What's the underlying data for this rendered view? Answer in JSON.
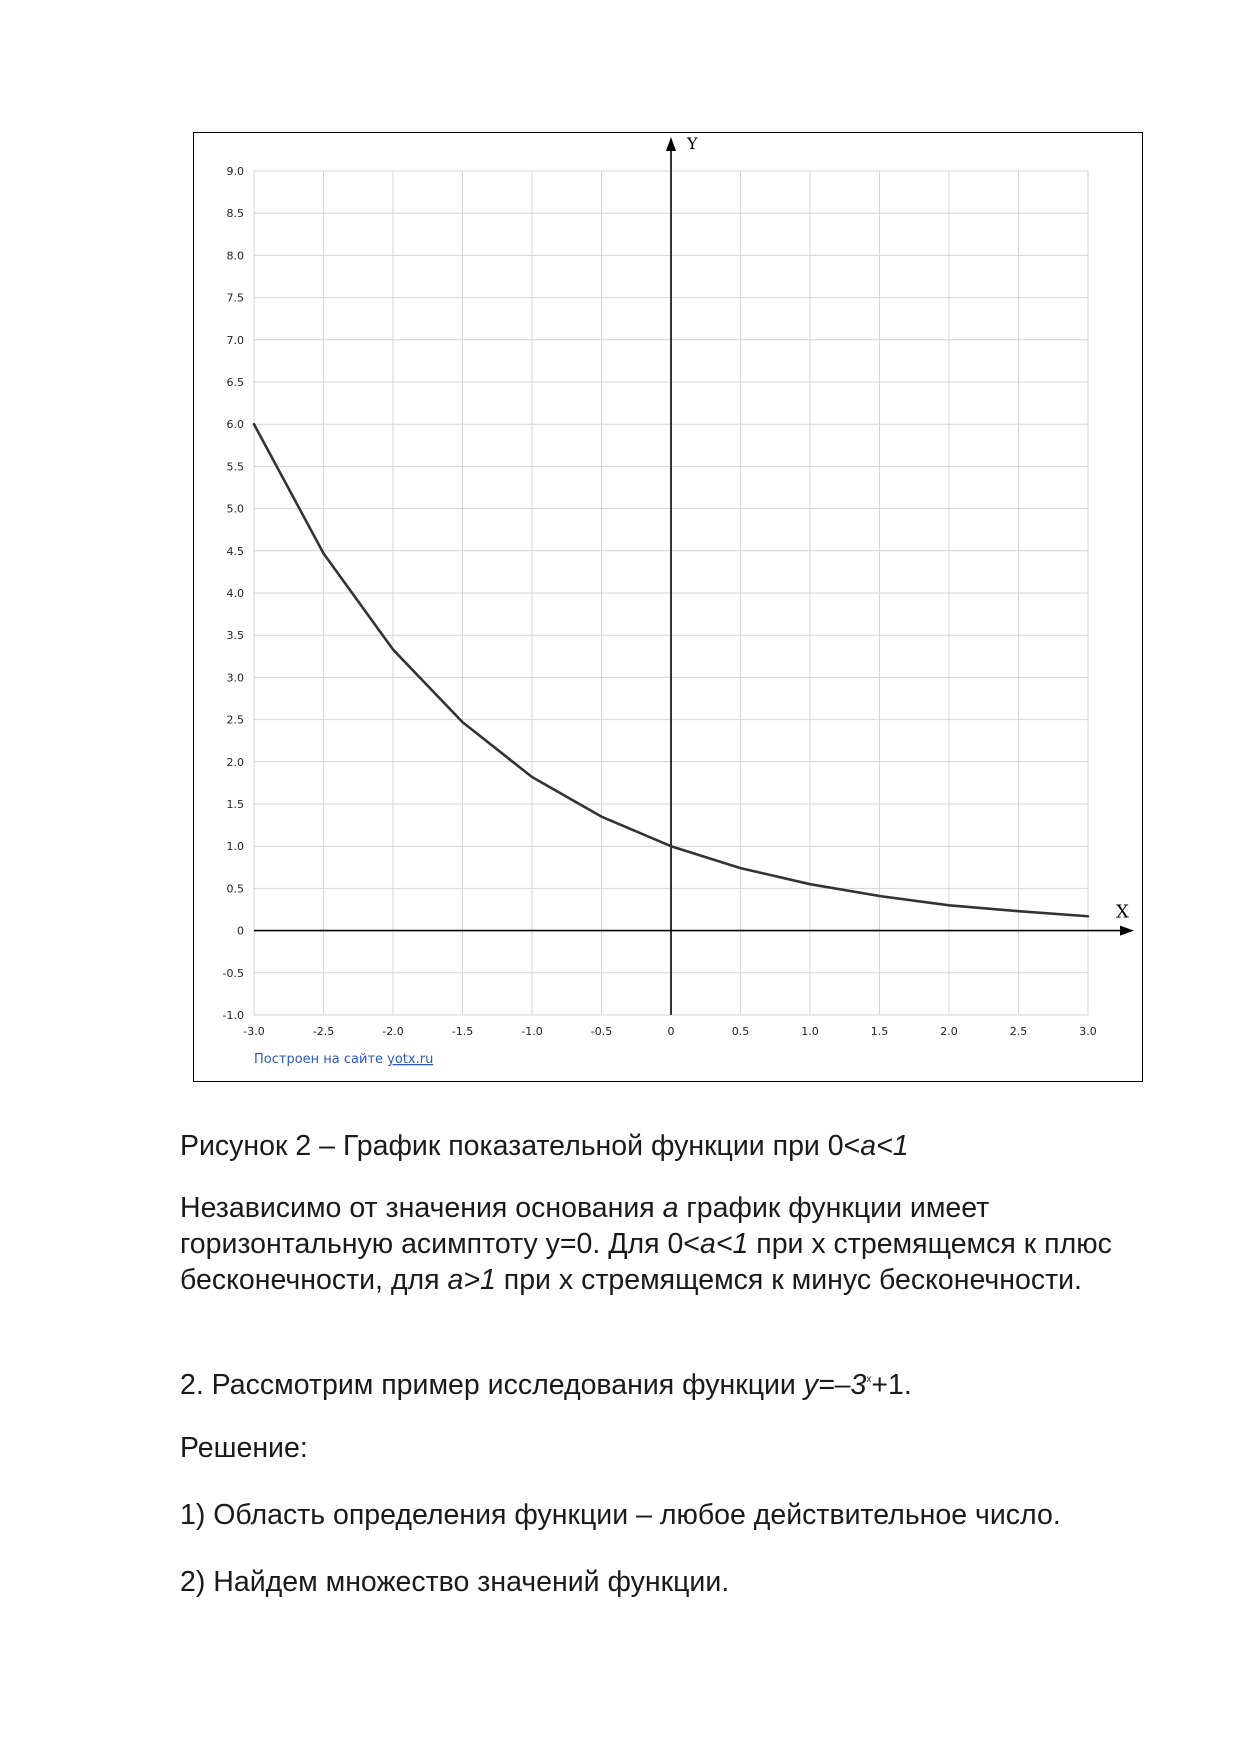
{
  "chart_data": {
    "type": "line",
    "title": "",
    "xlabel": "X",
    "ylabel": "Y",
    "xlim": [
      -3.0,
      3.0
    ],
    "ylim": [
      -1.0,
      9.0
    ],
    "grid": true,
    "x_ticks": [
      "-3.0",
      "-2.5",
      "-2.0",
      "-1.5",
      "-1.0",
      "-0.5",
      "0",
      "0.5",
      "1.0",
      "1.5",
      "2.0",
      "2.5",
      "3.0"
    ],
    "y_ticks": [
      "9.0",
      "8.5",
      "8.0",
      "7.5",
      "7.0",
      "6.5",
      "6.0",
      "5.5",
      "5.0",
      "4.5",
      "4.0",
      "3.5",
      "3.0",
      "2.5",
      "2.0",
      "1.5",
      "1.0",
      "0.5",
      "0",
      "-0.5",
      "-1.0"
    ],
    "series": [
      {
        "x": [
          -3.0,
          -2.5,
          -2.0,
          -1.5,
          -1.0,
          -0.5,
          0.0,
          0.5,
          1.0,
          1.5,
          2.0,
          2.5,
          3.0
        ],
        "y": [
          6.0,
          4.47,
          3.33,
          2.47,
          1.82,
          1.35,
          1.0,
          0.74,
          0.55,
          0.41,
          0.3,
          0.23,
          0.17
        ],
        "color": "#333333"
      }
    ],
    "watermark_prefix": "Построен на сайте ",
    "watermark_link": "yotx.ru"
  },
  "text": {
    "caption": {
      "a": "Рисунок 2 – График показательной функции при 0<",
      "b": "a<1"
    },
    "p1": {
      "a": "Независимо от значения основания ",
      "b": "a",
      "c": " график функции имеет горизонтальную асимптоту y=0. Для 0<",
      "d": "a<1",
      "e": " при x стремящемся к плюс бесконечности, для ",
      "f": "a>1",
      "g": " при x стремящемся к минус бесконечности."
    },
    "p2": {
      "a": "2. Рассмотрим пример исследования функции ",
      "b": "y=–3",
      "sup": "x",
      "c": "+1."
    },
    "p3": "Решение:",
    "p4": "1) Область определения функции – любое действительное число.",
    "p5": "2) Найдем множество значений функции."
  },
  "colors": {
    "grid": "#d4d4d4",
    "axis": "#000000",
    "curve": "#333333",
    "link": "#2b5bb5"
  }
}
